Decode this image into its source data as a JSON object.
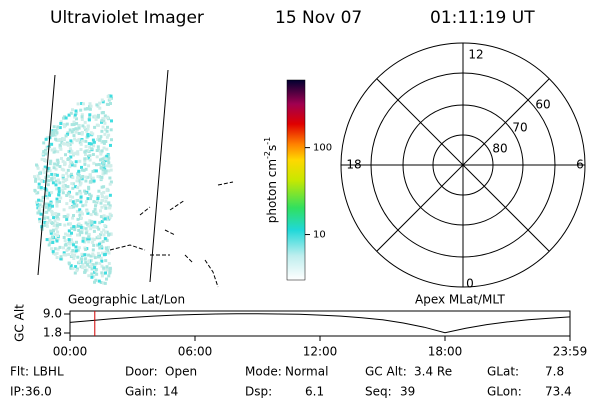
{
  "header": {
    "title": "Ultraviolet Imager",
    "date": "15 Nov 07",
    "time": "01:11:19 UT"
  },
  "colorbar": {
    "label_parts": [
      "photon cm",
      "-2",
      "s",
      "-1"
    ],
    "clim": [
      3,
      600
    ],
    "log": true,
    "ticks": [
      10,
      100
    ]
  },
  "polar": {
    "hour_labels": [
      "12",
      "6",
      "0",
      "18"
    ],
    "ring_labels": [
      "60",
      "70",
      "80"
    ]
  },
  "alt_plot": {
    "ylabel": "GC Alt",
    "left_label": "Geographic Lat/Lon",
    "right_label": "Apex MLat/MLT",
    "xlim": [
      0,
      24
    ],
    "ylim": [
      1.8,
      9.0
    ],
    "yticks": [
      {
        "value": 9.0,
        "label": "9.0"
      },
      {
        "value": 1.8,
        "label": "1.8"
      }
    ],
    "xticks": [
      {
        "value": 0,
        "label": "00:00"
      },
      {
        "value": 6,
        "label": "06:00"
      },
      {
        "value": 12,
        "label": "12:00"
      },
      {
        "value": 18,
        "label": "18:00"
      },
      {
        "value": 24,
        "label": "23:59"
      }
    ],
    "x": [
      0,
      1,
      2,
      3,
      4,
      5,
      6,
      7,
      8,
      9,
      10,
      11,
      12,
      13,
      14,
      15,
      16,
      17,
      18,
      19,
      20,
      21,
      22,
      23,
      24
    ],
    "values": [
      5.8,
      6.5,
      7.2,
      7.7,
      8.2,
      8.6,
      8.8,
      9.0,
      9.1,
      9.1,
      9.0,
      8.9,
      8.6,
      8.2,
      7.6,
      6.8,
      5.6,
      4.0,
      1.9,
      3.6,
      5.0,
      6.0,
      6.8,
      7.4,
      7.9
    ],
    "current_hour": 1.19
  },
  "footer": {
    "rows": [
      [
        {
          "label": "Flt:",
          "value": "LBHL"
        },
        {
          "label": "Door:",
          "value": "Open"
        },
        {
          "label": "Mode:",
          "value": "Normal"
        },
        {
          "label": "GC Alt:",
          "value": "3.4 Re"
        },
        {
          "label": "GLat:",
          "value": "7.8"
        }
      ],
      [
        {
          "label": "IP:",
          "value": "36.0"
        },
        {
          "label": "Gain:",
          "value": "14"
        },
        {
          "label": "Dsp:",
          "value": "6.1"
        },
        {
          "label": "Seq:",
          "value": "39"
        },
        {
          "label": "GLon:",
          "value": "73.4"
        }
      ]
    ]
  }
}
